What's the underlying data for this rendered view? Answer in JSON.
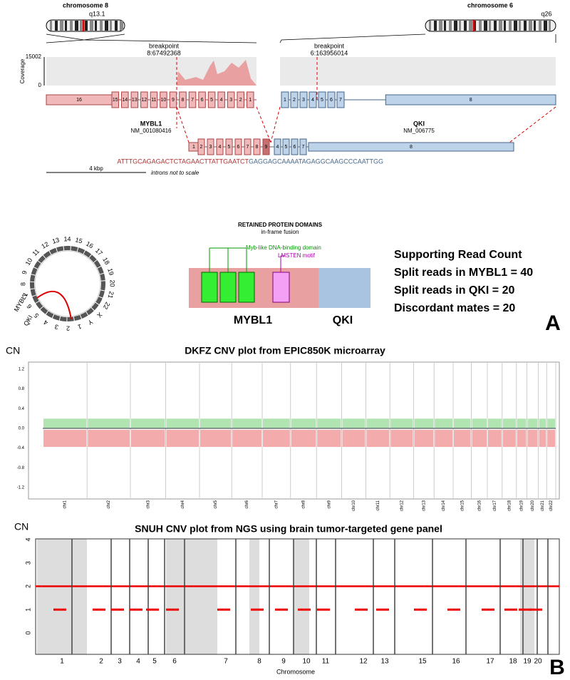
{
  "panel_a": {
    "chrom_left": "chromosome 8",
    "band_left": "q13.1",
    "chrom_right": "chromosome 6",
    "band_right": "q26",
    "coverage_label": "Coverage",
    "coverage_max": "15002",
    "coverage_min": "0",
    "breakpoint_left": {
      "label": "breakpoint",
      "position": "8:67492368"
    },
    "breakpoint_right": {
      "label": "breakpoint",
      "position": "6:163956014"
    },
    "gene_left": {
      "name": "MYBL1",
      "id": "NM_001080416",
      "exons": [
        "16",
        "15",
        "14",
        "13",
        "12",
        "11",
        "10",
        "9",
        "8",
        "7",
        "6",
        "5",
        "4",
        "3",
        "2",
        "1"
      ]
    },
    "gene_right": {
      "name": "QKI",
      "id": "NM_006775",
      "exons": [
        "1",
        "2",
        "3",
        "4",
        "5",
        "6",
        "7",
        "8"
      ]
    },
    "fusion_exons_left": [
      "1",
      "2",
      "3",
      "4",
      "5",
      "6",
      "7",
      "8",
      "9"
    ],
    "fusion_exons_right": [
      "4",
      "5",
      "6",
      "7",
      "8"
    ],
    "sequence_left": "ATTTGCAGAGACTCTAGAACTTATTGAATCT",
    "sequence_right": "GAGGAGCAAAATAGAGGCAAGCCCAATTGG",
    "scale": "4 kbp",
    "scale_note": "introns not to scale",
    "circos_labels": [
      "1",
      "2",
      "3",
      "4",
      "5",
      "6",
      "7",
      "8",
      "9",
      "10",
      "11",
      "12",
      "13",
      "14",
      "15",
      "16",
      "17",
      "18",
      "19",
      "20",
      "21",
      "22",
      "X",
      "Y"
    ],
    "circos_genes": [
      "MYBL1",
      "QKI"
    ],
    "domains_title": "RETAINED PROTEIN DOMAINS",
    "domains_subtitle": "in-frame fusion",
    "domain_myb": "Myb-like DNA-binding domain",
    "domain_motif": "LMSTEN motif",
    "domain_gene_left": "MYBL1",
    "domain_gene_right": "QKI",
    "read_count_title": "Supporting Read Count",
    "read_counts": [
      "Split reads in MYBL1 = 40",
      "Split reads in QKI = 20",
      "Discordant mates = 20"
    ],
    "panel_label": "A"
  },
  "panel_b": {
    "dkfz": {
      "y_label": "CN",
      "title": "DKFZ CNV plot from EPIC850K microarray",
      "yticks": [
        "1.2",
        "0.8",
        "0.4",
        "0.0",
        "-0.4",
        "-0.8",
        "-1.2"
      ],
      "chromosomes": [
        "chr1",
        "chr2",
        "chr3",
        "chr4",
        "chr5",
        "chr6",
        "chr7",
        "chr8",
        "chr9",
        "chr10",
        "chr11",
        "chr12",
        "chr13",
        "chr14",
        "chr15",
        "chr16",
        "chr17",
        "chr18",
        "chr19",
        "chr20",
        "chr21",
        "chr22"
      ]
    },
    "snuh": {
      "y_label": "CN",
      "title": "SNUH CNV plot from NGS using brain tumor-targeted gene panel",
      "yticks": [
        "4",
        "3",
        "2",
        "1",
        "0"
      ],
      "chromosomes": [
        "1",
        "2",
        "3",
        "4",
        "5",
        "6",
        "7",
        "8",
        "9",
        "10",
        "11",
        "12",
        "13",
        "15",
        "16",
        "17",
        "18",
        "19",
        "20"
      ],
      "x_label": "Chromosome"
    },
    "panel_label": "B"
  }
}
